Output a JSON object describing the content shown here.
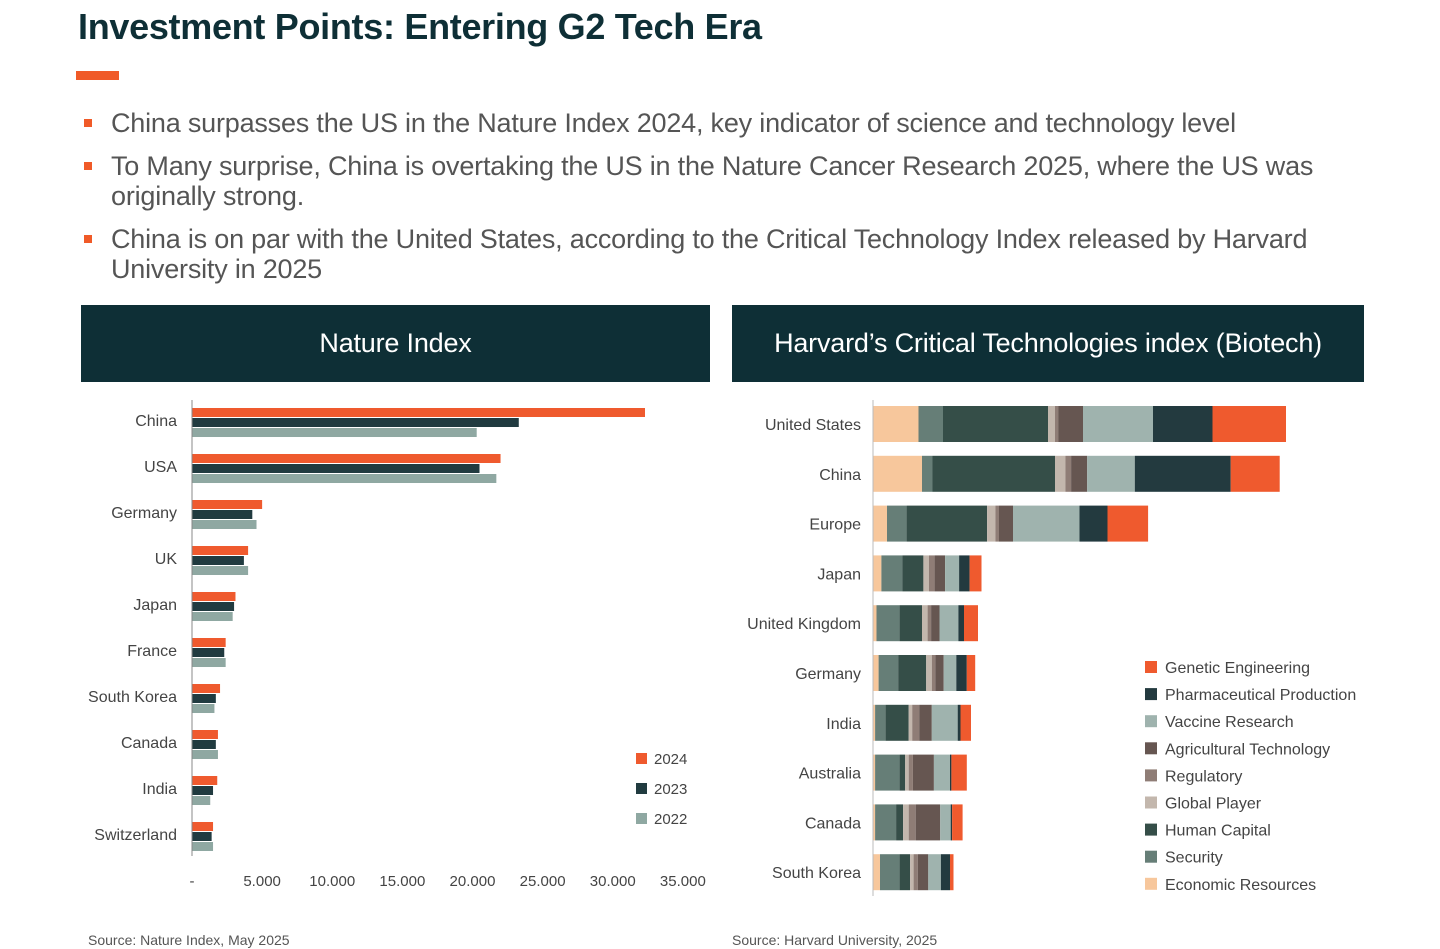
{
  "page": {
    "title": "Investment Points: Entering G2 Tech Era",
    "accent_color": "#f05a28",
    "header_color": "#0e2f36",
    "bullets": [
      "China surpasses the US in the Nature Index 2024, key indicator of science and technology level",
      "To Many surprise, China is overtaking the US in the Nature Cancer Research 2025, where the US was originally strong.",
      "China is on par with the United States, according to the Critical Technology Index released by Harvard University in 2025"
    ]
  },
  "panels": {
    "nature": {
      "header": "Nature Index",
      "source": "Source: Nature Index, May 2025"
    },
    "harvard": {
      "header": "Harvard’s Critical Technologies index (Biotech)",
      "source": "Source: Harvard University, 2025"
    }
  },
  "chart_data": [
    {
      "type": "bar",
      "orientation": "horizontal",
      "categories": [
        "China",
        "USA",
        "Germany",
        "UK",
        "Japan",
        "France",
        "South Korea",
        "Canada",
        "India",
        "Switzerland"
      ],
      "series": [
        {
          "name": "2024",
          "color": "#ef5a2e",
          "values": [
            32300,
            22000,
            5000,
            4000,
            3100,
            2400,
            2000,
            1850,
            1800,
            1500
          ]
        },
        {
          "name": "2023",
          "color": "#213b40",
          "values": [
            23300,
            20500,
            4300,
            3700,
            3000,
            2300,
            1700,
            1700,
            1500,
            1400
          ]
        },
        {
          "name": "2022",
          "color": "#8fa8a2",
          "values": [
            20300,
            21700,
            4600,
            4000,
            2900,
            2400,
            1600,
            1850,
            1300,
            1500
          ]
        }
      ],
      "xlim": [
        0,
        35000
      ],
      "xticks": [
        0,
        5000,
        10000,
        15000,
        20000,
        25000,
        30000,
        35000
      ],
      "xtick_labels": [
        "-",
        "5.000",
        "10.000",
        "15.000",
        "20.000",
        "25.000",
        "30.000",
        "35.000"
      ],
      "legend_position": "bottom-right"
    },
    {
      "type": "bar",
      "orientation": "horizontal",
      "stacked": true,
      "categories": [
        "United States",
        "China",
        "Europe",
        "Japan",
        "United Kingdom",
        "Germany",
        "India",
        "Australia",
        "Canada",
        "South Korea"
      ],
      "series": [
        {
          "name": "Economic Resources",
          "color": "#f7c79c",
          "values": [
            6.5,
            7.0,
            2.0,
            1.2,
            0.5,
            0.8,
            0.3,
            0.3,
            0.3,
            1.0
          ]
        },
        {
          "name": "Security",
          "color": "#667e77",
          "values": [
            3.5,
            1.5,
            2.8,
            3.0,
            3.3,
            2.8,
            1.5,
            3.5,
            3.0,
            2.8
          ]
        },
        {
          "name": "Human Capital",
          "color": "#354e48",
          "values": [
            15.0,
            17.5,
            11.5,
            3.0,
            3.2,
            4.0,
            3.3,
            0.8,
            1.0,
            1.5
          ]
        },
        {
          "name": "Global Player",
          "color": "#c3b7ad",
          "values": [
            1.0,
            1.5,
            1.2,
            0.8,
            0.8,
            0.8,
            0.5,
            0.5,
            0.8,
            0.5
          ]
        },
        {
          "name": "Regulatory",
          "color": "#8f7d76",
          "values": [
            0.5,
            0.8,
            0.5,
            0.8,
            0.5,
            0.5,
            1.0,
            0.6,
            1.0,
            0.6
          ]
        },
        {
          "name": "Agricultural Technology",
          "color": "#665651",
          "values": [
            3.5,
            2.3,
            2.0,
            1.5,
            1.2,
            1.2,
            1.8,
            3.0,
            3.5,
            1.5
          ]
        },
        {
          "name": "Vaccine Research",
          "color": "#9fb3ae",
          "values": [
            10.0,
            6.8,
            9.5,
            2.0,
            2.7,
            1.8,
            3.7,
            2.3,
            1.5,
            1.8
          ]
        },
        {
          "name": "Pharmaceutical Production",
          "color": "#233a3f",
          "values": [
            8.5,
            13.7,
            4.0,
            1.5,
            0.8,
            1.5,
            0.4,
            0.2,
            0.2,
            1.3
          ]
        },
        {
          "name": "Genetic Engineering",
          "color": "#ef5a2e",
          "values": [
            10.5,
            7.0,
            5.8,
            1.7,
            2.0,
            1.2,
            1.5,
            2.2,
            1.5,
            0.5
          ]
        }
      ],
      "legend_order": [
        "Genetic Engineering",
        "Pharmaceutical Production",
        "Vaccine Research",
        "Agricultural Technology",
        "Regulatory",
        "Global Player",
        "Human Capital",
        "Security",
        "Economic Resources"
      ],
      "legend_position": "bottom-right",
      "xlim": [
        0,
        62
      ]
    }
  ]
}
